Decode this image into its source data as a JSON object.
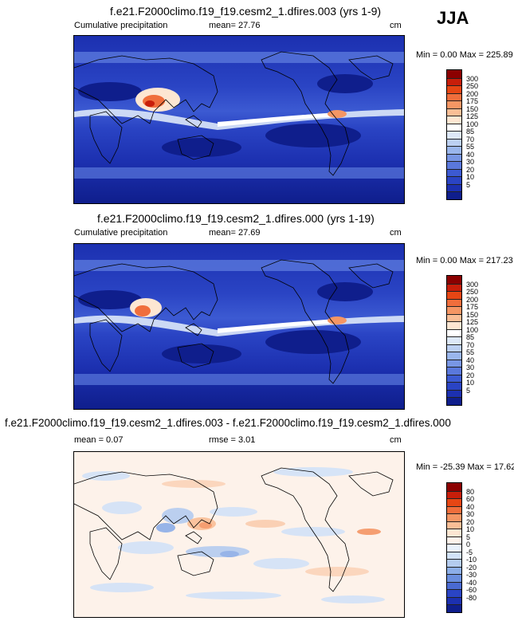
{
  "season": "JJA",
  "panels": [
    {
      "title": "f.e21.F2000climo.f19_f19.cesm2_1.dfires.003 (yrs 1-9)",
      "left_label": "Cumulative precipitation",
      "stat": "mean=  27.76",
      "unit": "cm",
      "range": "Min =   0.00 Max = 225.89",
      "colors": [
        "#8b0000",
        "#c81e0a",
        "#e64614",
        "#f06e3c",
        "#f59664",
        "#fabe96",
        "#fde6d2",
        "#ffffff",
        "#dde8f8",
        "#bcd0f2",
        "#9ab6ec",
        "#7896e4",
        "#5a78dc",
        "#3c5ad2",
        "#2a44c4",
        "#1c30b0",
        "#0f1e8c"
      ],
      "labels": [
        "300",
        "250",
        "200",
        "175",
        "150",
        "125",
        "100",
        "85",
        "70",
        "55",
        "40",
        "30",
        "20",
        "10",
        "5"
      ]
    },
    {
      "title": "f.e21.F2000climo.f19_f19.cesm2_1.dfires.000 (yrs 1-19)",
      "left_label": "Cumulative precipitation",
      "stat": "mean=  27.69",
      "unit": "cm",
      "range": "Min =   0.00 Max = 217.23",
      "colors": [
        "#8b0000",
        "#c81e0a",
        "#e64614",
        "#f06e3c",
        "#f59664",
        "#fabe96",
        "#fde6d2",
        "#ffffff",
        "#dde8f8",
        "#bcd0f2",
        "#9ab6ec",
        "#7896e4",
        "#5a78dc",
        "#3c5ad2",
        "#2a44c4",
        "#1c30b0",
        "#0f1e8c"
      ],
      "labels": [
        "300",
        "250",
        "200",
        "175",
        "150",
        "125",
        "100",
        "85",
        "70",
        "55",
        "40",
        "30",
        "20",
        "10",
        "5"
      ]
    },
    {
      "title": "f.e21.F2000climo.f19_f19.cesm2_1.dfires.003 - f.e21.F2000climo.f19_f19.cesm2_1.dfires.000",
      "left_label": "mean =  0.07",
      "stat": "rmse =  3.01",
      "unit": "cm",
      "range": "Min = -25.39 Max =  17.62",
      "colors": [
        "#8b0000",
        "#c81e0a",
        "#e64614",
        "#f06e3c",
        "#f59664",
        "#fabe96",
        "#fde6d2",
        "#fdf2ea",
        "#eaf2fc",
        "#d2e2f8",
        "#b4ccf0",
        "#8caee8",
        "#6a8ede",
        "#4a6ad2",
        "#2a44c4",
        "#1c30b0",
        "#0f1e8c"
      ],
      "labels": [
        "80",
        "60",
        "40",
        "30",
        "20",
        "10",
        "5",
        "0",
        "-5",
        "-10",
        "-20",
        "-30",
        "-40",
        "-60",
        "-80"
      ]
    }
  ]
}
